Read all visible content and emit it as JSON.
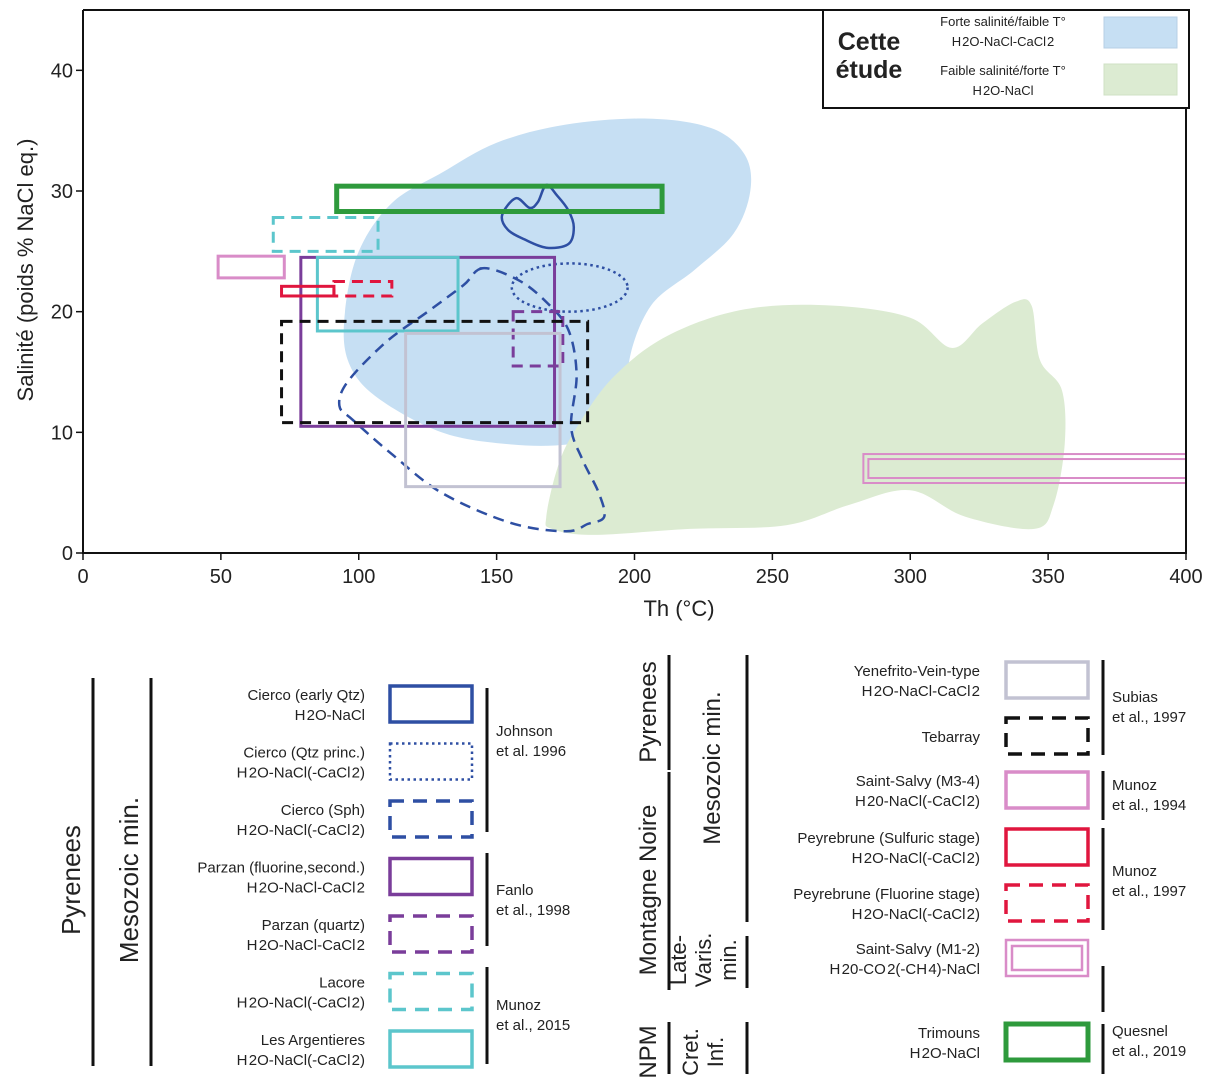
{
  "chart_data": {
    "type": "scatter",
    "title": "",
    "xlabel": "Th (°C)",
    "ylabel": "Salinité (poids % NaCl eq.)",
    "xlim": [
      0,
      400
    ],
    "ylim": [
      0,
      45
    ],
    "x_ticks": [
      0,
      50,
      100,
      150,
      200,
      250,
      300,
      350,
      400
    ],
    "y_ticks": [
      0,
      10,
      20,
      30,
      40
    ],
    "grid": false,
    "colors": {
      "blue_zone": "#c6dff3",
      "green_zone": "#dcebd2",
      "dark_blue": "#2e4fa3",
      "purple": "#7a3d9a",
      "cyan": "#5cc6cc",
      "pink": "#d98cc8",
      "red": "#e0163e",
      "black": "#111111",
      "grey": "#c2c2d2",
      "green": "#2e9a3c"
    },
    "this_study": {
      "label_line1": "Cette",
      "label_line2": "étude",
      "items": [
        {
          "key": "blue_zone",
          "name_line1": "Forte salinité/faible T°",
          "name_line2": "H2O-NaCl-CaCl2",
          "color": "#c6dff3"
        },
        {
          "key": "green_zone",
          "name_line1": "Faible salinité/forte T°",
          "name_line2": "H2O-NaCl",
          "color": "#dcebd2"
        }
      ]
    },
    "zones": {
      "blue_zone_outline": [
        [
          95,
          20
        ],
        [
          100,
          25
        ],
        [
          112,
          29
        ],
        [
          130,
          31.5
        ],
        [
          150,
          34
        ],
        [
          175,
          35.5
        ],
        [
          205,
          36
        ],
        [
          228,
          35.2
        ],
        [
          240,
          33
        ],
        [
          242,
          30
        ],
        [
          236,
          26.5
        ],
        [
          222,
          23.5
        ],
        [
          206,
          20.5
        ],
        [
          198,
          15.8
        ],
        [
          200,
          12
        ],
        [
          192,
          10
        ],
        [
          176,
          9
        ],
        [
          155,
          9
        ],
        [
          130,
          10
        ],
        [
          106,
          13
        ],
        [
          96,
          16
        ]
      ],
      "green_zone_outline": [
        [
          168,
          3
        ],
        [
          172,
          7
        ],
        [
          178,
          10
        ],
        [
          192,
          14.5
        ],
        [
          212,
          18
        ],
        [
          240,
          20.2
        ],
        [
          272,
          20.5
        ],
        [
          300,
          19.5
        ],
        [
          315,
          17
        ],
        [
          326,
          19
        ],
        [
          338,
          20.8
        ],
        [
          344,
          20.5
        ],
        [
          347,
          16
        ],
        [
          355,
          13.5
        ],
        [
          356,
          9
        ],
        [
          352,
          4
        ],
        [
          345,
          2
        ],
        [
          320,
          3
        ],
        [
          300,
          5.2
        ],
        [
          278,
          4
        ],
        [
          255,
          2.3
        ],
        [
          220,
          2
        ],
        [
          185,
          1.5
        ],
        [
          170,
          2
        ]
      ]
    },
    "series": [
      {
        "key": "cierco_early",
        "name_line1": "Cierco (early Qtz)",
        "name_line2": "H2O-NaCl",
        "shape": "polygon",
        "style": "solid",
        "color": "#2e4fa3",
        "points": [
          [
            152,
            28
          ],
          [
            157,
            29.4
          ],
          [
            162,
            28.6
          ],
          [
            165,
            29.1
          ],
          [
            168,
            30.5
          ],
          [
            172,
            29.6
          ],
          [
            176,
            28.4
          ],
          [
            178,
            27
          ],
          [
            176,
            25.6
          ],
          [
            168,
            25.3
          ],
          [
            160,
            26
          ],
          [
            154,
            26.8
          ]
        ]
      },
      {
        "key": "cierco_princ",
        "name_line1": "Cierco (Qtz princ.)",
        "name_line2": "H2O-NaCl(-CaCl2)",
        "shape": "ellipse",
        "style": "dotted",
        "color": "#2e4fa3",
        "center": [
          176.5,
          22
        ],
        "radii": [
          21,
          2
        ]
      },
      {
        "key": "cierco_sph",
        "name_line1": "Cierco (Sph)",
        "name_line2": "H2O-NaCl(-CaCl2)",
        "shape": "polygon",
        "style": "dashed",
        "color": "#2e4fa3",
        "points": [
          [
            145,
            23.6
          ],
          [
            138,
            22.2
          ],
          [
            125,
            20
          ],
          [
            110,
            17.5
          ],
          [
            96,
            14.2
          ],
          [
            93,
            12.2
          ],
          [
            98,
            11
          ],
          [
            112,
            8.2
          ],
          [
            130,
            5
          ],
          [
            155,
            2.5
          ],
          [
            175,
            1.8
          ],
          [
            183,
            2.4
          ],
          [
            189,
            3
          ],
          [
            187,
            5
          ],
          [
            181,
            7.8
          ],
          [
            177,
            10.5
          ],
          [
            179,
            14.8
          ],
          [
            176,
            18.5
          ],
          [
            168,
            20.8
          ],
          [
            158,
            22.6
          ]
        ]
      },
      {
        "key": "parzan_fluo",
        "name_line1": "Parzan (fluorine,second.)",
        "name_line2": "H2O-NaCl-CaCl2",
        "shape": "rect",
        "style": "solid",
        "color": "#7a3d9a",
        "x": [
          79,
          171
        ],
        "y": [
          10.5,
          24.5
        ]
      },
      {
        "key": "parzan_qtz",
        "name_line1": "Parzan (quartz)",
        "name_line2": "H2O-NaCl-CaCl2",
        "shape": "rect",
        "style": "dashed",
        "color": "#7a3d9a",
        "x": [
          156,
          174
        ],
        "y": [
          15.5,
          20
        ]
      },
      {
        "key": "lacore",
        "name_line1": "Lacore",
        "name_line2": "H2O-NaCl(-CaCl2)",
        "shape": "rect",
        "style": "dashed",
        "color": "#5cc6cc",
        "x": [
          69,
          107
        ],
        "y": [
          25,
          27.8
        ]
      },
      {
        "key": "argentieres",
        "name_line1": "Les Argentieres",
        "name_line2": "H2O-NaCl(-CaCl2)",
        "shape": "rect",
        "style": "solid",
        "color": "#5cc6cc",
        "x": [
          85,
          136
        ],
        "y": [
          18.4,
          24.5
        ]
      },
      {
        "key": "yenefrito",
        "name_line1": "Yenefrito-Vein-type",
        "name_line2": "H2O-NaCl-CaCl2",
        "shape": "rect",
        "style": "solid",
        "color": "#c2c2d2",
        "x": [
          117,
          173
        ],
        "y": [
          5.5,
          18.2
        ]
      },
      {
        "key": "tebarray",
        "name_line1": "Tebarray",
        "name_line2": "",
        "shape": "rect",
        "style": "dashed",
        "color": "#111111",
        "x": [
          72,
          183
        ],
        "y": [
          10.8,
          19.2
        ]
      },
      {
        "key": "salvy_m34",
        "name_line1": "Saint-Salvy (M3-4)",
        "name_line2": "H20-NaCl(-CaCl2)",
        "shape": "rect",
        "style": "solid",
        "color": "#d98cc8",
        "x": [
          49,
          73
        ],
        "y": [
          22.8,
          24.6
        ]
      },
      {
        "key": "peyrebrune_sulf",
        "name_line1": "Peyrebrune (Sulfuric stage)",
        "name_line2": "H2O-NaCl(-CaCl2)",
        "shape": "rect",
        "style": "solid",
        "color": "#e0163e",
        "x": [
          72,
          91
        ],
        "y": [
          21.3,
          22.1
        ]
      },
      {
        "key": "peyrebrune_fluo",
        "name_line1": "Peyrebrune (Fluorine stage)",
        "name_line2": "H2O-NaCl(-CaCl2)",
        "shape": "rect",
        "style": "dashed",
        "color": "#e0163e",
        "x": [
          91,
          112
        ],
        "y": [
          21.3,
          22.5
        ]
      },
      {
        "key": "salvy_m12",
        "name_line1": "Saint-Salvy (M1-2)",
        "name_line2": "H20-CO2(-CH4)-NaCl",
        "shape": "rect",
        "style": "double",
        "color": "#d98cc8",
        "x": [
          283,
          400
        ],
        "y": [
          5.8,
          8.2
        ]
      },
      {
        "key": "trimouns",
        "name_line1": "Trimouns",
        "name_line2": "H2O-NaCl",
        "shape": "rect",
        "style": "solid_thick",
        "color": "#2e9a3c",
        "x": [
          92,
          210
        ],
        "y": [
          28.3,
          30.4
        ]
      }
    ],
    "legend_left": {
      "region_label": "Pyrenees",
      "sub_label": "Mesozoic min.",
      "refs": [
        {
          "label_line1": "Johnson",
          "label_line2": "et al. 1996",
          "members": [
            "cierco_early",
            "cierco_princ",
            "cierco_sph"
          ]
        },
        {
          "label_line1": "Fanlo",
          "label_line2": "et al., 1998",
          "members": [
            "parzan_fluo",
            "parzan_qtz"
          ]
        },
        {
          "label_line1": "Munoz",
          "label_line2": "et al., 2015",
          "members": [
            "lacore",
            "argentieres"
          ]
        }
      ]
    },
    "legend_right": {
      "region_pyrenees": "Pyrenees",
      "region_montagne": "Montagne Noire",
      "region_npm": "NPM",
      "sub_mesozoic": "Mesozoic min.",
      "sub_late_line1": "Late-",
      "sub_late_line2": "Varis.",
      "sub_late_line3": "min.",
      "sub_cret_line1": "Cret.",
      "sub_cret_line2": "Inf.",
      "refs": [
        {
          "label_line1": "Subias",
          "label_line2": "et al., 1997",
          "members": [
            "yenefrito",
            "tebarray"
          ]
        },
        {
          "label_line1": "Munoz",
          "label_line2": "et al., 1994",
          "members": [
            "salvy_m34"
          ]
        },
        {
          "label_line1": "Munoz",
          "label_line2": "et al., 1997",
          "members": [
            "peyrebrune_sulf",
            "peyrebrune_fluo"
          ]
        },
        {
          "label_line1": "Quesnel",
          "label_line2": "et al., 2019",
          "members": [
            "trimouns"
          ]
        }
      ]
    }
  }
}
